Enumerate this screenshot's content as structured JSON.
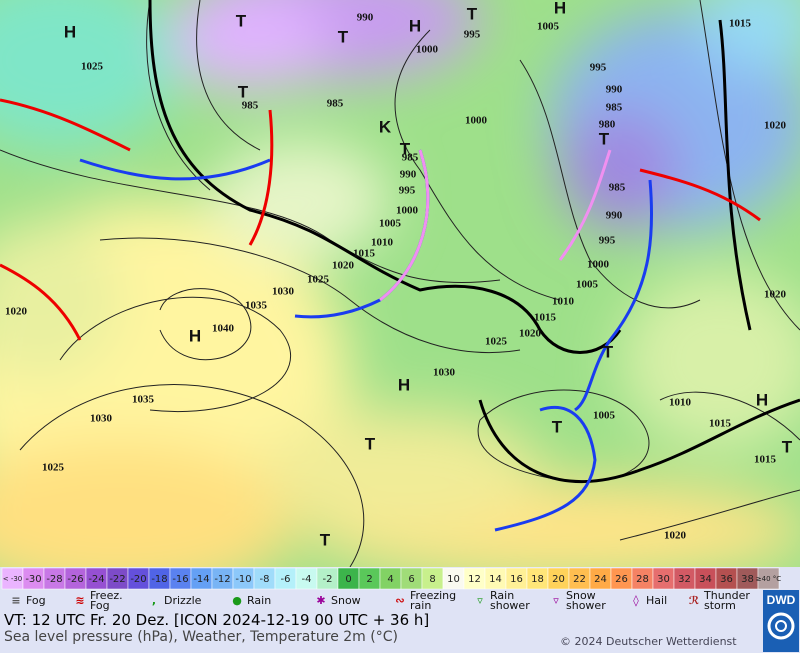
{
  "map": {
    "pressure_labels": [
      "990",
      "995",
      "1005",
      "1015",
      "1000",
      "985",
      "985",
      "995",
      "990",
      "985",
      "980",
      "1000",
      "1020",
      "985",
      "990",
      "995",
      "1000",
      "1005",
      "1010",
      "1015",
      "1020",
      "1025",
      "1030",
      "1035",
      "1040",
      "985",
      "990",
      "995",
      "1000",
      "1005",
      "1010",
      "1015",
      "1020",
      "1025",
      "1030",
      "1035",
      "1030",
      "1025",
      "1020",
      "1025",
      "1010",
      "1015",
      "1015",
      "1005",
      "1020",
      "1020"
    ],
    "centers": [
      "H",
      "H",
      "T",
      "H",
      "T",
      "T",
      "T",
      "T",
      "T",
      "H",
      "H",
      "T",
      "T",
      "T",
      "H",
      "T",
      "T",
      "K"
    ]
  },
  "legend": {
    "low_end": "< -30",
    "temperatures": [
      -30,
      -28,
      -26,
      -24,
      -22,
      -20,
      -18,
      -16,
      -14,
      -12,
      -10,
      -8,
      -6,
      -4,
      -2,
      0,
      2,
      4,
      6,
      8,
      10,
      12,
      14,
      16,
      18,
      20,
      22,
      24,
      26,
      28,
      30,
      32,
      34,
      36,
      38
    ],
    "high_end": "≥40 °C",
    "colors": [
      "#eab4ff",
      "#dc8cf0",
      "#c878e6",
      "#b464dc",
      "#9650d2",
      "#7d4bc8",
      "#6450dc",
      "#5064e6",
      "#5a82f0",
      "#64a0f5",
      "#78b4f5",
      "#8cc8fa",
      "#a0dcfa",
      "#b4f0fa",
      "#c8faf0",
      "#b4f0c8",
      "#3cb44b",
      "#5ac85a",
      "#82d264",
      "#a0dc78",
      "#c8f08c",
      "#fafaf0",
      "#ffffc8",
      "#fffab4",
      "#fff096",
      "#ffe678",
      "#ffd25a",
      "#ffbe50",
      "#ffaa46",
      "#ff9650",
      "#f58264",
      "#e66e6e",
      "#d25a64",
      "#c8505a",
      "#b45050",
      "#a05a5a",
      "#b4a0a0"
    ],
    "weather": [
      "Fog",
      "Freez. Fog",
      "Drizzle",
      "Rain",
      "Snow",
      "Freezing rain",
      "Rain shower",
      "Snow shower",
      "Hail",
      "Thunder storm"
    ]
  },
  "footer": {
    "valid_time": "VT: 12 UTC Fr.  20 Dez. [ICON 2024-12-19  00 UTC + 36 h]",
    "description": "Sea level pressure (hPa), Weather, Temperature 2m (°C)",
    "copyright": "© 2024 Deutscher Wetterdienst",
    "logo": "DWD"
  }
}
